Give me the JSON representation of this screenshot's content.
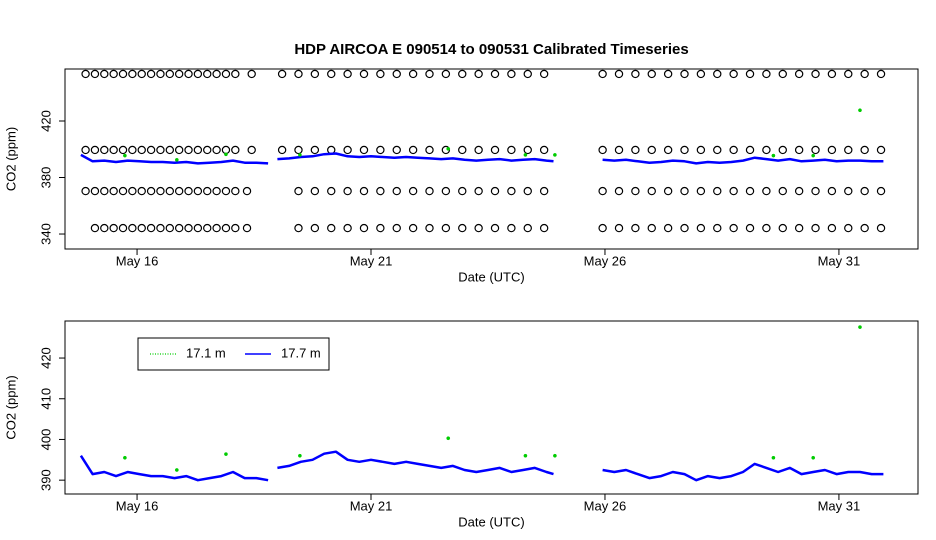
{
  "chart_data": [
    {
      "type": "line",
      "title": "HDP   AIRCOA  E   090514  to  090531   Calibrated Timeseries",
      "xlabel": "Date (UTC)",
      "ylabel": "CO2 (ppm)",
      "xlim": [
        14.46,
        32.69
      ],
      "ylim": [
        329.4,
        456.8
      ],
      "xticks": [
        {
          "value": 16,
          "label": "May 16"
        },
        {
          "value": 21,
          "label": "May 21"
        },
        {
          "value": 26,
          "label": "May 26"
        },
        {
          "value": 31,
          "label": "May 31"
        }
      ],
      "yticks": [
        340,
        380,
        420
      ],
      "series": [
        {
          "color": "#000000",
          "marker": "circle",
          "x": [
            14.9,
            15.1,
            15.3,
            15.5,
            15.7,
            15.9,
            16.1,
            16.3,
            16.5,
            16.7,
            16.9,
            17.1,
            17.3,
            17.5,
            17.7,
            17.9,
            18.1,
            18.45,
            19.1,
            19.45,
            19.8,
            20.15,
            20.5,
            20.85,
            21.2,
            21.55,
            21.9,
            22.25,
            22.6,
            22.95,
            23.3,
            23.65,
            24.0,
            24.35,
            24.7,
            25.95,
            26.3,
            26.65,
            27.0,
            27.35,
            27.7,
            28.05,
            28.4,
            28.75,
            29.1,
            29.45,
            29.8,
            30.15,
            30.5,
            30.85,
            31.2,
            31.55,
            31.9
          ],
          "values": [
            453.3,
            453.3,
            453.3,
            453.3,
            453.3,
            453.3,
            453.3,
            453.3,
            453.3,
            453.3,
            453.3,
            453.3,
            453.3,
            453.3,
            453.3,
            453.3,
            453.3,
            453.3,
            453.3,
            453.3,
            453.3,
            453.3,
            453.3,
            453.3,
            453.3,
            453.3,
            453.3,
            453.3,
            453.3,
            453.3,
            453.3,
            453.3,
            453.3,
            453.3,
            453.3,
            453.3,
            453.3,
            453.3,
            453.3,
            453.3,
            453.3,
            453.3,
            453.3,
            453.3,
            453.3,
            453.3,
            453.3,
            453.3,
            453.3,
            453.3,
            453.3,
            453.3,
            453.3
          ]
        },
        {
          "color": "#000000",
          "marker": "circle",
          "x": [
            14.9,
            15.1,
            15.3,
            15.5,
            15.7,
            15.9,
            16.1,
            16.3,
            16.5,
            16.7,
            16.9,
            17.1,
            17.3,
            17.5,
            17.7,
            17.9,
            18.1,
            18.45,
            19.1,
            19.45,
            19.8,
            20.15,
            20.5,
            20.85,
            21.2,
            21.55,
            21.9,
            22.25,
            22.6,
            22.95,
            23.3,
            23.65,
            24.0,
            24.35,
            24.7,
            25.95,
            26.3,
            26.65,
            27.0,
            27.35,
            27.7,
            28.05,
            28.4,
            28.75,
            29.1,
            29.45,
            29.8,
            30.15,
            30.5,
            30.85,
            31.2,
            31.55,
            31.9
          ],
          "values": [
            399.5,
            399.5,
            399.5,
            399.5,
            399.5,
            399.5,
            399.5,
            399.5,
            399.5,
            399.5,
            399.5,
            399.5,
            399.5,
            399.5,
            399.5,
            399.5,
            399.5,
            399.5,
            399.5,
            399.5,
            399.5,
            399.5,
            399.5,
            399.5,
            399.5,
            399.5,
            399.5,
            399.5,
            399.5,
            399.5,
            399.5,
            399.5,
            399.5,
            399.5,
            399.5,
            399.5,
            399.5,
            399.5,
            399.5,
            399.5,
            399.5,
            399.5,
            399.5,
            399.5,
            399.5,
            399.5,
            399.5,
            399.5,
            399.5,
            399.5,
            399.5,
            399.5,
            399.5
          ]
        },
        {
          "color": "#000000",
          "marker": "circle",
          "x": [
            14.9,
            15.1,
            15.3,
            15.5,
            15.7,
            15.9,
            16.1,
            16.3,
            16.5,
            16.7,
            16.9,
            17.1,
            17.3,
            17.5,
            17.7,
            17.9,
            18.1,
            18.35,
            19.45,
            19.8,
            20.15,
            20.5,
            20.85,
            21.2,
            21.55,
            21.9,
            22.25,
            22.6,
            22.95,
            23.3,
            23.65,
            24.0,
            24.35,
            24.7,
            25.95,
            26.3,
            26.65,
            27.0,
            27.35,
            27.7,
            28.05,
            28.4,
            28.75,
            29.1,
            29.45,
            29.8,
            30.15,
            30.5,
            30.85,
            31.2,
            31.55,
            31.9
          ],
          "values": [
            370.4,
            370.4,
            370.4,
            370.4,
            370.4,
            370.4,
            370.4,
            370.4,
            370.4,
            370.4,
            370.4,
            370.4,
            370.4,
            370.4,
            370.4,
            370.4,
            370.4,
            370.4,
            370.4,
            370.4,
            370.4,
            370.4,
            370.4,
            370.4,
            370.4,
            370.4,
            370.4,
            370.4,
            370.4,
            370.4,
            370.4,
            370.4,
            370.4,
            370.4,
            370.4,
            370.4,
            370.4,
            370.4,
            370.4,
            370.4,
            370.4,
            370.4,
            370.4,
            370.4,
            370.4,
            370.4,
            370.4,
            370.4,
            370.4,
            370.4,
            370.4,
            370.4
          ]
        },
        {
          "color": "#000000",
          "marker": "circle",
          "x": [
            15.1,
            15.3,
            15.5,
            15.7,
            15.9,
            16.1,
            16.3,
            16.5,
            16.7,
            16.9,
            17.1,
            17.3,
            17.5,
            17.7,
            17.9,
            18.1,
            18.35,
            19.45,
            19.8,
            20.15,
            20.5,
            20.85,
            21.2,
            21.55,
            21.9,
            22.25,
            22.6,
            22.95,
            23.3,
            23.65,
            24.0,
            24.35,
            24.7,
            25.95,
            26.3,
            26.65,
            27.0,
            27.35,
            27.7,
            28.05,
            28.4,
            28.75,
            29.1,
            29.45,
            29.8,
            30.15,
            30.5,
            30.85,
            31.2,
            31.55,
            31.9
          ],
          "values": [
            344.2,
            344.2,
            344.2,
            344.2,
            344.2,
            344.2,
            344.2,
            344.2,
            344.2,
            344.2,
            344.2,
            344.2,
            344.2,
            344.2,
            344.2,
            344.2,
            344.2,
            344.2,
            344.2,
            344.2,
            344.2,
            344.2,
            344.2,
            344.2,
            344.2,
            344.2,
            344.2,
            344.2,
            344.2,
            344.2,
            344.2,
            344.2,
            344.2,
            344.2,
            344.2,
            344.2,
            344.2,
            344.2,
            344.2,
            344.2,
            344.2,
            344.2,
            344.2,
            344.2,
            344.2,
            344.2,
            344.2,
            344.2,
            344.2,
            344.2,
            344.2
          ]
        },
        {
          "color": "#0000ff",
          "marker": "line",
          "x": [
            14.8,
            15.05,
            15.3,
            15.55,
            15.8,
            16.05,
            16.3,
            16.55,
            16.8,
            17.05,
            17.3,
            17.55,
            17.8,
            18.05,
            18.3,
            18.55,
            18.8,
            18.9,
            19.0,
            19.25,
            19.5,
            19.75,
            20.0,
            20.25,
            20.5,
            20.75,
            21.0,
            21.25,
            21.5,
            21.75,
            22.0,
            22.25,
            22.5,
            22.75,
            23.0,
            23.25,
            23.5,
            23.75,
            24.0,
            24.25,
            24.5,
            24.75,
            24.9,
            25.4,
            25.95,
            26.2,
            26.45,
            26.7,
            26.95,
            27.2,
            27.45,
            27.7,
            27.95,
            28.2,
            28.45,
            28.7,
            28.95,
            29.2,
            29.45,
            29.7,
            29.95,
            30.2,
            30.45,
            30.7,
            30.95,
            31.2,
            31.45,
            31.7,
            31.95
          ],
          "values": [
            396,
            391.5,
            392,
            391,
            392,
            391.5,
            391,
            391,
            390.5,
            391,
            390,
            390.5,
            391,
            392,
            390.5,
            390.5,
            390,
            null,
            393,
            393.5,
            394.5,
            395,
            396.5,
            397,
            395,
            394.5,
            395,
            394.5,
            394,
            394.5,
            394,
            393.5,
            393,
            393.5,
            392.5,
            392,
            392.5,
            393,
            392,
            392.5,
            393,
            392,
            391.5,
            null,
            392.5,
            392,
            392.5,
            391.5,
            390.5,
            391,
            392,
            391.5,
            390,
            391,
            390.5,
            391,
            392,
            394,
            393,
            392,
            393,
            391.5,
            392,
            392.5,
            391.5,
            392,
            392,
            391.5,
            391.5
          ]
        },
        {
          "color": "#00cc00",
          "marker": "point",
          "x": [
            15.74,
            16.85,
            17.9,
            19.48,
            22.65,
            24.3,
            24.93,
            29.6,
            30.45,
            31.45
          ],
          "values": [
            395.5,
            392.5,
            396.4,
            396,
            400.3,
            396,
            396,
            395.5,
            395.5,
            427.6
          ]
        }
      ]
    },
    {
      "type": "line",
      "xlabel": "Date (UTC)",
      "ylabel": "CO2 (ppm)",
      "xlim": [
        14.46,
        32.69
      ],
      "ylim": [
        386.6,
        429.1
      ],
      "xticks": [
        {
          "value": 16,
          "label": "May 16"
        },
        {
          "value": 21,
          "label": "May 21"
        },
        {
          "value": 26,
          "label": "May 26"
        },
        {
          "value": 31,
          "label": "May 31"
        }
      ],
      "yticks": [
        390,
        400,
        410,
        420
      ],
      "legend": "top-left",
      "series": [
        {
          "name": "17.1 m",
          "color": "#00cc00",
          "marker": "point",
          "x": [
            15.74,
            16.85,
            17.9,
            19.48,
            22.65,
            24.3,
            24.93,
            29.6,
            30.45,
            31.45
          ],
          "values": [
            395.5,
            392.5,
            396.4,
            396,
            400.3,
            396,
            396,
            395.5,
            395.5,
            427.6
          ]
        },
        {
          "name": "17.7 m",
          "color": "#0000ff",
          "marker": "line",
          "x": [
            14.8,
            15.05,
            15.3,
            15.55,
            15.8,
            16.05,
            16.3,
            16.55,
            16.8,
            17.05,
            17.3,
            17.55,
            17.8,
            18.05,
            18.3,
            18.55,
            18.8,
            18.9,
            19.0,
            19.25,
            19.5,
            19.75,
            20.0,
            20.25,
            20.5,
            20.75,
            21.0,
            21.25,
            21.5,
            21.75,
            22.0,
            22.25,
            22.5,
            22.75,
            23.0,
            23.25,
            23.5,
            23.75,
            24.0,
            24.25,
            24.5,
            24.75,
            24.9,
            25.4,
            25.95,
            26.2,
            26.45,
            26.7,
            26.95,
            27.2,
            27.45,
            27.7,
            27.95,
            28.2,
            28.45,
            28.7,
            28.95,
            29.2,
            29.45,
            29.7,
            29.95,
            30.2,
            30.45,
            30.7,
            30.95,
            31.2,
            31.45,
            31.7,
            31.95
          ],
          "values": [
            396,
            391.5,
            392,
            391,
            392,
            391.5,
            391,
            391,
            390.5,
            391,
            390,
            390.5,
            391,
            392,
            390.5,
            390.5,
            390,
            null,
            393,
            393.5,
            394.5,
            395,
            396.5,
            397,
            395,
            394.5,
            395,
            394.5,
            394,
            394.5,
            394,
            393.5,
            393,
            393.5,
            392.5,
            392,
            392.5,
            393,
            392,
            392.5,
            393,
            392,
            391.5,
            null,
            392.5,
            392,
            392.5,
            391.5,
            390.5,
            391,
            392,
            391.5,
            390,
            391,
            390.5,
            391,
            392,
            394,
            393,
            392,
            393,
            391.5,
            392,
            392.5,
            391.5,
            392,
            392,
            391.5,
            391.5
          ]
        }
      ]
    }
  ]
}
